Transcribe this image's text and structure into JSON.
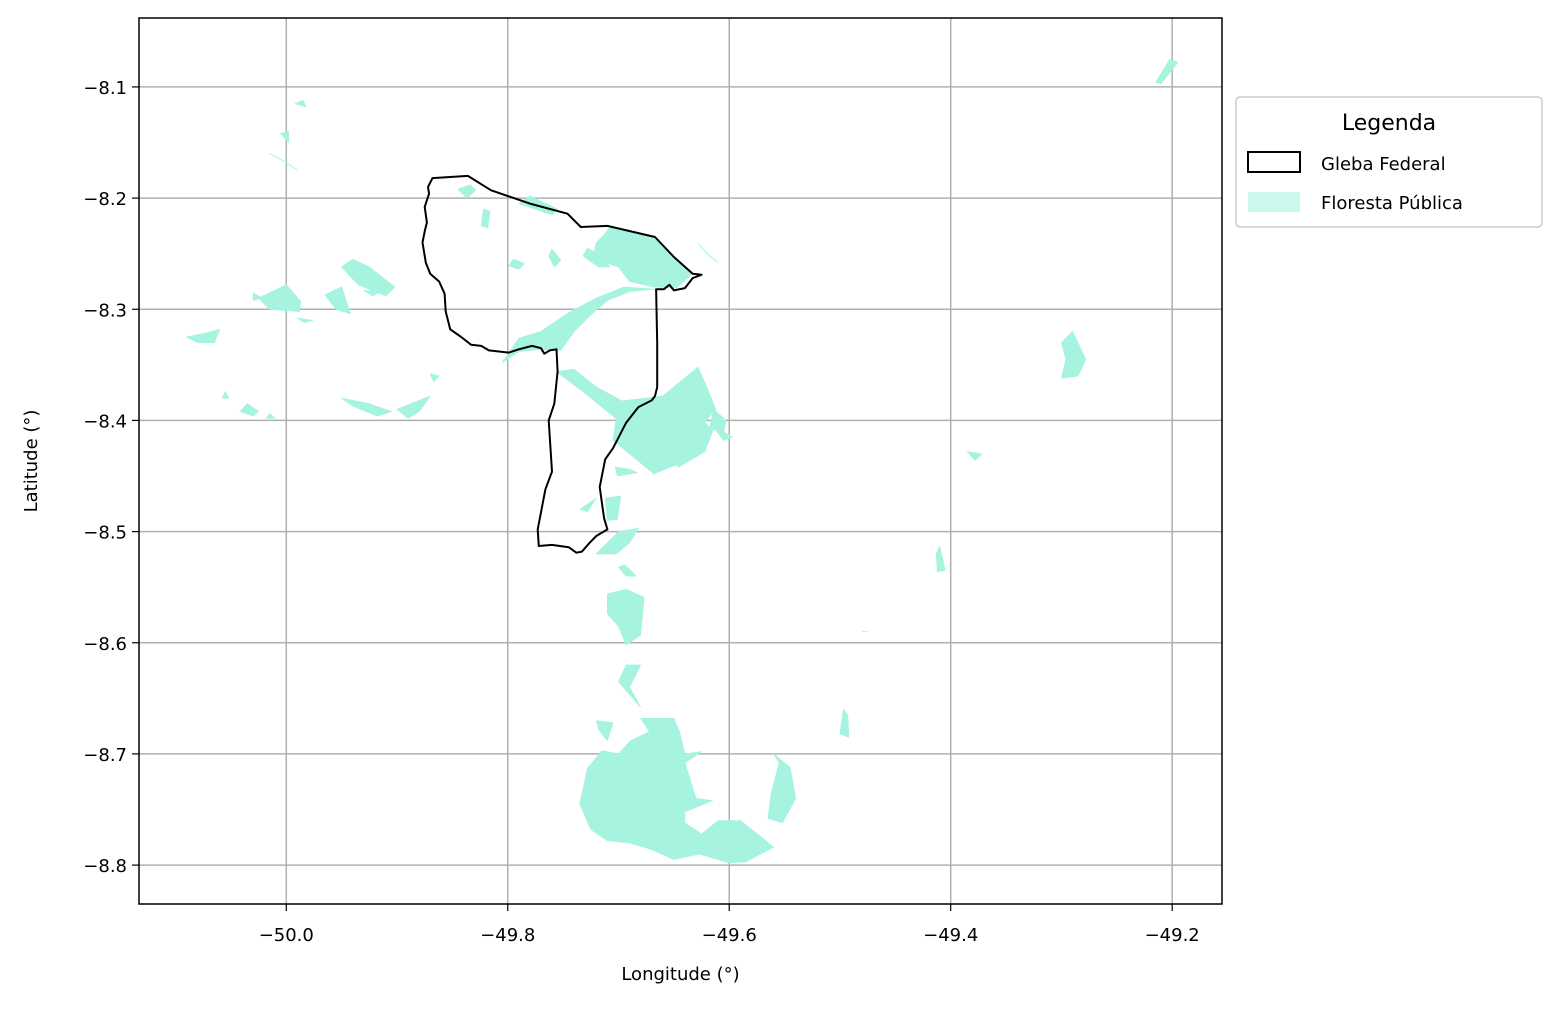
{
  "chart_data": {
    "type": "map",
    "xlabel": "Longitude (°)",
    "ylabel": "Latitude (°)",
    "xlim": [
      -50.133,
      -49.155
    ],
    "ylim": [
      -8.835,
      -8.038
    ],
    "xticks": [
      -50.0,
      -49.8,
      -49.6,
      -49.4,
      -49.2
    ],
    "yticks": [
      -8.1,
      -8.2,
      -8.3,
      -8.4,
      -8.5,
      -8.6,
      -8.7,
      -8.8
    ],
    "xtick_labels": [
      "−50.0",
      "−49.8",
      "−49.6",
      "−49.4",
      "−49.2"
    ],
    "ytick_labels": [
      "−8.1",
      "−8.2",
      "−8.3",
      "−8.4",
      "−8.5",
      "−8.6",
      "−8.7",
      "−8.8"
    ],
    "grid": true,
    "legend": {
      "title": "Legenda",
      "placement": "outside-right-top",
      "entries": [
        {
          "label": "Gleba Federal",
          "style": "outline",
          "color": "#000000"
        },
        {
          "label": "Floresta Pública",
          "style": "fill",
          "color": "#a6f3e0"
        }
      ]
    },
    "gleba_federal": [
      [
        -49.868,
        -8.182
      ],
      [
        -49.836,
        -8.18
      ],
      [
        -49.815,
        -8.193
      ],
      [
        -49.78,
        -8.205
      ],
      [
        -49.746,
        -8.214
      ],
      [
        -49.734,
        -8.226
      ],
      [
        -49.71,
        -8.225
      ],
      [
        -49.667,
        -8.235
      ],
      [
        -49.65,
        -8.253
      ],
      [
        -49.633,
        -8.268
      ],
      [
        -49.625,
        -8.269
      ],
      [
        -49.633,
        -8.272
      ],
      [
        -49.64,
        -8.281
      ],
      [
        -49.65,
        -8.283
      ],
      [
        -49.654,
        -8.278
      ],
      [
        -49.659,
        -8.282
      ],
      [
        -49.666,
        -8.282
      ],
      [
        -49.665,
        -8.33
      ],
      [
        -49.665,
        -8.37
      ],
      [
        -49.667,
        -8.378
      ],
      [
        -49.67,
        -8.382
      ],
      [
        -49.682,
        -8.388
      ],
      [
        -49.693,
        -8.402
      ],
      [
        -49.705,
        -8.425
      ],
      [
        -49.712,
        -8.435
      ],
      [
        -49.717,
        -8.46
      ],
      [
        -49.713,
        -8.488
      ],
      [
        -49.71,
        -8.498
      ],
      [
        -49.72,
        -8.504
      ],
      [
        -49.726,
        -8.51
      ],
      [
        -49.733,
        -8.518
      ],
      [
        -49.738,
        -8.519
      ],
      [
        -49.745,
        -8.514
      ],
      [
        -49.76,
        -8.512
      ],
      [
        -49.772,
        -8.513
      ],
      [
        -49.773,
        -8.498
      ],
      [
        -49.766,
        -8.462
      ],
      [
        -49.76,
        -8.446
      ],
      [
        -49.763,
        -8.4
      ],
      [
        -49.758,
        -8.385
      ],
      [
        -49.755,
        -8.356
      ],
      [
        -49.756,
        -8.336
      ],
      [
        -49.762,
        -8.337
      ],
      [
        -49.767,
        -8.34
      ],
      [
        -49.77,
        -8.335
      ],
      [
        -49.778,
        -8.333
      ],
      [
        -49.79,
        -8.336
      ],
      [
        -49.799,
        -8.339
      ],
      [
        -49.808,
        -8.338
      ],
      [
        -49.817,
        -8.337
      ],
      [
        -49.824,
        -8.333
      ],
      [
        -49.833,
        -8.332
      ],
      [
        -49.842,
        -8.325
      ],
      [
        -49.852,
        -8.318
      ],
      [
        -49.856,
        -8.302
      ],
      [
        -49.857,
        -8.286
      ],
      [
        -49.862,
        -8.275
      ],
      [
        -49.87,
        -8.268
      ],
      [
        -49.874,
        -8.258
      ],
      [
        -49.877,
        -8.24
      ],
      [
        -49.875,
        -8.23
      ],
      [
        -49.873,
        -8.222
      ],
      [
        -49.875,
        -8.208
      ],
      [
        -49.871,
        -8.196
      ],
      [
        -49.872,
        -8.19
      ],
      [
        -49.868,
        -8.182
      ]
    ],
    "floresta_publica": [
      [
        [
          -49.845,
          -8.192
        ],
        [
          -49.834,
          -8.188
        ],
        [
          -49.829,
          -8.193
        ],
        [
          -49.837,
          -8.2
        ]
      ],
      [
        [
          -49.822,
          -8.21
        ],
        [
          -49.816,
          -8.212
        ],
        [
          -49.818,
          -8.227
        ],
        [
          -49.824,
          -8.225
        ]
      ],
      [
        [
          -49.76,
          -8.215
        ],
        [
          -49.79,
          -8.205
        ],
        [
          -49.78,
          -8.198
        ],
        [
          -49.755,
          -8.21
        ]
      ],
      [
        [
          -49.708,
          -8.226
        ],
        [
          -49.667,
          -8.235
        ],
        [
          -49.65,
          -8.253
        ],
        [
          -49.633,
          -8.268
        ],
        [
          -49.648,
          -8.281
        ],
        [
          -49.668,
          -8.28
        ],
        [
          -49.69,
          -8.275
        ],
        [
          -49.7,
          -8.262
        ],
        [
          -49.712,
          -8.258
        ],
        [
          -49.722,
          -8.25
        ],
        [
          -49.72,
          -8.24
        ],
        [
          -49.712,
          -8.232
        ]
      ],
      [
        [
          -49.728,
          -8.245
        ],
        [
          -49.715,
          -8.252
        ],
        [
          -49.708,
          -8.262
        ],
        [
          -49.718,
          -8.262
        ],
        [
          -49.732,
          -8.252
        ]
      ],
      [
        [
          -49.76,
          -8.246
        ],
        [
          -49.752,
          -8.256
        ],
        [
          -49.758,
          -8.262
        ],
        [
          -49.763,
          -8.252
        ]
      ],
      [
        [
          -49.795,
          -8.255
        ],
        [
          -49.785,
          -8.259
        ],
        [
          -49.79,
          -8.264
        ],
        [
          -49.799,
          -8.261
        ]
      ],
      [
        [
          -49.668,
          -8.282
        ],
        [
          -49.69,
          -8.284
        ],
        [
          -49.71,
          -8.292
        ],
        [
          -49.725,
          -8.305
        ],
        [
          -49.74,
          -8.32
        ],
        [
          -49.752,
          -8.337
        ],
        [
          -49.77,
          -8.336
        ],
        [
          -49.79,
          -8.338
        ],
        [
          -49.805,
          -8.348
        ],
        [
          -49.79,
          -8.326
        ],
        [
          -49.77,
          -8.32
        ],
        [
          -49.745,
          -8.303
        ],
        [
          -49.72,
          -8.29
        ],
        [
          -49.695,
          -8.28
        ]
      ],
      [
        [
          -49.756,
          -8.356
        ],
        [
          -49.731,
          -8.375
        ],
        [
          -49.7,
          -8.4
        ],
        [
          -49.69,
          -8.386
        ],
        [
          -49.72,
          -8.37
        ],
        [
          -49.74,
          -8.354
        ]
      ],
      [
        [
          -49.7,
          -8.383
        ],
        [
          -49.66,
          -8.378
        ],
        [
          -49.628,
          -8.352
        ],
        [
          -49.612,
          -8.39
        ],
        [
          -49.63,
          -8.41
        ],
        [
          -49.648,
          -8.44
        ],
        [
          -49.668,
          -8.448
        ],
        [
          -49.69,
          -8.43
        ],
        [
          -49.705,
          -8.418
        ]
      ],
      [
        [
          -49.665,
          -8.395
        ],
        [
          -49.638,
          -8.382
        ],
        [
          -49.615,
          -8.41
        ],
        [
          -49.622,
          -8.428
        ],
        [
          -49.646,
          -8.442
        ],
        [
          -49.66,
          -8.42
        ]
      ],
      [
        [
          -49.614,
          -8.39
        ],
        [
          -49.603,
          -8.4
        ],
        [
          -49.605,
          -8.41
        ],
        [
          -49.618,
          -8.408
        ]
      ],
      [
        [
          -49.615,
          -8.405
        ],
        [
          -49.597,
          -8.415
        ],
        [
          -49.605,
          -8.418
        ]
      ],
      [
        [
          -49.703,
          -8.442
        ],
        [
          -49.69,
          -8.444
        ],
        [
          -49.683,
          -8.447
        ],
        [
          -49.701,
          -8.45
        ]
      ],
      [
        [
          -49.712,
          -8.47
        ],
        [
          -49.698,
          -8.468
        ],
        [
          -49.701,
          -8.489
        ],
        [
          -49.71,
          -8.49
        ]
      ],
      [
        [
          -49.72,
          -8.47
        ],
        [
          -49.735,
          -8.48
        ],
        [
          -49.728,
          -8.482
        ]
      ],
      [
        [
          -49.72,
          -8.52
        ],
        [
          -49.7,
          -8.5
        ],
        [
          -49.682,
          -8.497
        ],
        [
          -49.69,
          -8.51
        ],
        [
          -49.702,
          -8.52
        ]
      ],
      [
        [
          -49.7,
          -8.532
        ],
        [
          -49.693,
          -8.54
        ],
        [
          -49.684,
          -8.54
        ],
        [
          -49.694,
          -8.53
        ]
      ],
      [
        [
          -49.71,
          -8.556
        ],
        [
          -49.693,
          -8.552
        ],
        [
          -49.677,
          -8.559
        ],
        [
          -49.68,
          -8.593
        ],
        [
          -49.693,
          -8.602
        ],
        [
          -49.7,
          -8.585
        ],
        [
          -49.71,
          -8.574
        ]
      ],
      [
        [
          -49.693,
          -8.62
        ],
        [
          -49.7,
          -8.635
        ],
        [
          -49.68,
          -8.658
        ],
        [
          -49.69,
          -8.64
        ],
        [
          -49.68,
          -8.62
        ]
      ],
      [
        [
          -49.72,
          -8.67
        ],
        [
          -49.705,
          -8.672
        ],
        [
          -49.71,
          -8.688
        ],
        [
          -49.718,
          -8.678
        ]
      ],
      [
        [
          -49.68,
          -8.668
        ],
        [
          -49.65,
          -8.668
        ],
        [
          -49.645,
          -8.68
        ],
        [
          -49.64,
          -8.7
        ],
        [
          -49.625,
          -8.698
        ],
        [
          -49.64,
          -8.708
        ],
        [
          -49.63,
          -8.74
        ],
        [
          -49.615,
          -8.742
        ],
        [
          -49.64,
          -8.752
        ],
        [
          -49.64,
          -8.762
        ],
        [
          -49.625,
          -8.772
        ],
        [
          -49.61,
          -8.76
        ],
        [
          -49.59,
          -8.76
        ],
        [
          -49.572,
          -8.774
        ],
        [
          -49.56,
          -8.784
        ],
        [
          -49.585,
          -8.797
        ],
        [
          -49.6,
          -8.798
        ],
        [
          -49.627,
          -8.79
        ],
        [
          -49.65,
          -8.795
        ],
        [
          -49.67,
          -8.786
        ],
        [
          -49.69,
          -8.78
        ],
        [
          -49.71,
          -8.778
        ],
        [
          -49.725,
          -8.768
        ],
        [
          -49.735,
          -8.745
        ],
        [
          -49.728,
          -8.713
        ],
        [
          -49.715,
          -8.697
        ],
        [
          -49.7,
          -8.7
        ],
        [
          -49.689,
          -8.688
        ],
        [
          -49.672,
          -8.68
        ]
      ],
      [
        [
          -49.705,
          -8.705
        ],
        [
          -49.683,
          -8.706
        ],
        [
          -49.68,
          -8.733
        ],
        [
          -49.668,
          -8.737
        ],
        [
          -49.665,
          -8.758
        ],
        [
          -49.648,
          -8.758
        ],
        [
          -49.648,
          -8.738
        ],
        [
          -49.668,
          -8.72
        ],
        [
          -49.692,
          -8.718
        ]
      ],
      [
        [
          -49.56,
          -8.7
        ],
        [
          -49.545,
          -8.712
        ],
        [
          -49.54,
          -8.74
        ],
        [
          -49.552,
          -8.762
        ],
        [
          -49.565,
          -8.758
        ],
        [
          -49.562,
          -8.735
        ],
        [
          -49.558,
          -8.72
        ],
        [
          -49.555,
          -8.708
        ]
      ],
      [
        [
          -49.5,
          -8.682
        ],
        [
          -49.497,
          -8.66
        ],
        [
          -49.493,
          -8.665
        ],
        [
          -49.492,
          -8.685
        ]
      ],
      [
        [
          -49.48,
          -8.59
        ],
        [
          -49.475,
          -8.59
        ]
      ],
      [
        [
          -49.41,
          -8.513
        ],
        [
          -49.405,
          -8.535
        ],
        [
          -49.412,
          -8.536
        ],
        [
          -49.413,
          -8.52
        ]
      ],
      [
        [
          -49.385,
          -8.428
        ],
        [
          -49.372,
          -8.43
        ],
        [
          -49.378,
          -8.436
        ]
      ],
      [
        [
          -49.3,
          -8.33
        ],
        [
          -49.29,
          -8.32
        ],
        [
          -49.278,
          -8.345
        ],
        [
          -49.285,
          -8.36
        ],
        [
          -49.3,
          -8.362
        ],
        [
          -49.296,
          -8.345
        ]
      ],
      [
        [
          -49.215,
          -8.096
        ],
        [
          -49.202,
          -8.075
        ],
        [
          -49.195,
          -8.078
        ],
        [
          -49.21,
          -8.097
        ]
      ],
      [
        [
          -49.94,
          -8.255
        ],
        [
          -49.925,
          -8.262
        ],
        [
          -49.902,
          -8.28
        ],
        [
          -49.91,
          -8.288
        ],
        [
          -49.935,
          -8.278
        ],
        [
          -49.95,
          -8.262
        ]
      ],
      [
        [
          -49.95,
          -8.28
        ],
        [
          -49.965,
          -8.287
        ],
        [
          -49.955,
          -8.3
        ],
        [
          -49.942,
          -8.304
        ]
      ],
      [
        [
          -50.0,
          -8.278
        ],
        [
          -49.987,
          -8.293
        ],
        [
          -49.988,
          -8.302
        ],
        [
          -50.015,
          -8.3
        ],
        [
          -50.025,
          -8.29
        ]
      ],
      [
        [
          -50.03,
          -8.285
        ],
        [
          -50.022,
          -8.29
        ],
        [
          -50.03,
          -8.292
        ]
      ],
      [
        [
          -49.99,
          -8.308
        ],
        [
          -49.976,
          -8.31
        ],
        [
          -49.984,
          -8.312
        ]
      ],
      [
        [
          -50.06,
          -8.318
        ],
        [
          -50.075,
          -8.322
        ],
        [
          -50.09,
          -8.325
        ],
        [
          -50.08,
          -8.33
        ],
        [
          -50.065,
          -8.33
        ]
      ],
      [
        [
          -50.015,
          -8.16
        ],
        [
          -50.005,
          -8.165
        ],
        [
          -49.99,
          -8.175
        ],
        [
          -50.0,
          -8.168
        ]
      ],
      [
        [
          -49.998,
          -8.14
        ],
        [
          -50.005,
          -8.142
        ],
        [
          -49.998,
          -8.15
        ]
      ],
      [
        [
          -49.985,
          -8.112
        ],
        [
          -49.992,
          -8.115
        ],
        [
          -49.982,
          -8.118
        ]
      ],
      [
        [
          -49.95,
          -8.38
        ],
        [
          -49.925,
          -8.385
        ],
        [
          -49.905,
          -8.392
        ],
        [
          -49.918,
          -8.396
        ],
        [
          -49.94,
          -8.387
        ]
      ],
      [
        [
          -49.9,
          -8.39
        ],
        [
          -49.89,
          -8.398
        ],
        [
          -49.88,
          -8.392
        ],
        [
          -49.87,
          -8.378
        ]
      ],
      [
        [
          -50.035,
          -8.385
        ],
        [
          -50.025,
          -8.392
        ],
        [
          -50.03,
          -8.396
        ],
        [
          -50.042,
          -8.392
        ]
      ],
      [
        [
          -50.055,
          -8.374
        ],
        [
          -50.052,
          -8.38
        ],
        [
          -50.058,
          -8.38
        ]
      ],
      [
        [
          -50.015,
          -8.394
        ],
        [
          -50.01,
          -8.398
        ],
        [
          -50.018,
          -8.398
        ]
      ],
      [
        [
          -49.93,
          -8.283
        ],
        [
          -49.915,
          -8.284
        ],
        [
          -49.922,
          -8.288
        ]
      ],
      [
        [
          -49.87,
          -8.358
        ],
        [
          -49.862,
          -8.36
        ],
        [
          -49.867,
          -8.365
        ]
      ],
      [
        [
          -49.61,
          -8.258
        ],
        [
          -49.62,
          -8.25
        ],
        [
          -49.628,
          -8.241
        ],
        [
          -49.618,
          -8.252
        ]
      ]
    ]
  }
}
